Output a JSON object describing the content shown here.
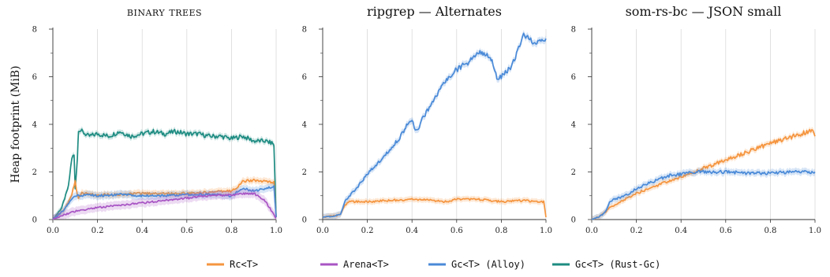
{
  "ylabel": "Heap footprint (MiB)",
  "legend": [
    {
      "label": "Rc<T>",
      "color": "#f5953f"
    },
    {
      "label": "Arena<T>",
      "color": "#a855c4"
    },
    {
      "label": "Gc<T> (Alloy)",
      "color": "#4a8ad8"
    },
    {
      "label": "Gc<T> (Rust-Gc)",
      "color": "#1e8c82"
    }
  ],
  "chart_data": [
    {
      "type": "line",
      "title": "binary trees",
      "xlim": [
        0,
        1
      ],
      "ylim": [
        0,
        8
      ],
      "xticks": [
        "0.0",
        "0.2",
        "0.4",
        "0.6",
        "0.8",
        "1.0"
      ],
      "yticks": [
        "0",
        "2",
        "4",
        "6",
        "8"
      ],
      "grid": true,
      "series": [
        {
          "name": "Gc<T> (Rust-Gc)",
          "color": "#1e8c82",
          "x": [
            0,
            0.04,
            0.07,
            0.085,
            0.095,
            0.1,
            0.11,
            0.115,
            0.13,
            0.16,
            0.2,
            0.25,
            0.3,
            0.35,
            0.4,
            0.45,
            0.5,
            0.55,
            0.6,
            0.65,
            0.7,
            0.75,
            0.8,
            0.85,
            0.9,
            0.95,
            0.985,
            0.99,
            1.0
          ],
          "y": [
            0,
            0.5,
            1.4,
            2.6,
            2.7,
            1.3,
            2.6,
            3.8,
            3.7,
            3.5,
            3.6,
            3.5,
            3.7,
            3.5,
            3.6,
            3.7,
            3.6,
            3.7,
            3.6,
            3.6,
            3.5,
            3.5,
            3.4,
            3.5,
            3.3,
            3.3,
            3.2,
            3.1,
            0.1
          ]
        },
        {
          "name": "Rc<T>",
          "color": "#f5953f",
          "x": [
            0,
            0.05,
            0.08,
            0.1,
            0.11,
            0.115,
            0.13,
            0.2,
            0.3,
            0.4,
            0.5,
            0.6,
            0.7,
            0.8,
            0.83,
            0.85,
            0.9,
            0.95,
            0.99,
            1.0
          ],
          "y": [
            0,
            0.4,
            0.9,
            1.6,
            1.0,
            0.9,
            1.1,
            1.05,
            1.05,
            1.1,
            1.1,
            1.1,
            1.15,
            1.2,
            1.4,
            1.6,
            1.65,
            1.6,
            1.55,
            0.1
          ]
        },
        {
          "name": "Gc<T> (Alloy)",
          "color": "#4a8ad8",
          "x": [
            0,
            0.05,
            0.08,
            0.1,
            0.12,
            0.15,
            0.2,
            0.3,
            0.4,
            0.5,
            0.6,
            0.7,
            0.8,
            0.85,
            0.9,
            0.95,
            0.99,
            1.0
          ],
          "y": [
            0,
            0.4,
            0.8,
            1.0,
            1.0,
            1.05,
            1.0,
            1.05,
            1.0,
            1.0,
            1.05,
            1.05,
            1.0,
            1.3,
            1.2,
            1.3,
            1.4,
            0.1
          ]
        },
        {
          "name": "Arena<T>",
          "color": "#a855c4",
          "x": [
            0,
            0.05,
            0.1,
            0.2,
            0.3,
            0.4,
            0.5,
            0.6,
            0.7,
            0.8,
            0.9,
            0.95,
            1.0
          ],
          "y": [
            0,
            0.2,
            0.35,
            0.5,
            0.6,
            0.7,
            0.8,
            0.9,
            1.0,
            1.05,
            1.1,
            0.8,
            0.05
          ]
        }
      ]
    },
    {
      "type": "line",
      "title": "ripgrep — Alternates",
      "xlim": [
        0,
        1
      ],
      "ylim": [
        0,
        8
      ],
      "xticks": [
        "0.0",
        "0.2",
        "0.4",
        "0.6",
        "0.8",
        "1.0"
      ],
      "yticks": [
        "0",
        "2",
        "4",
        "6",
        "8"
      ],
      "grid": true,
      "series": [
        {
          "name": "Rc<T>",
          "color": "#f5953f",
          "x": [
            0,
            0.05,
            0.08,
            0.1,
            0.12,
            0.2,
            0.3,
            0.4,
            0.5,
            0.55,
            0.6,
            0.7,
            0.8,
            0.9,
            0.95,
            0.99,
            1.0
          ],
          "y": [
            0.1,
            0.15,
            0.2,
            0.6,
            0.75,
            0.75,
            0.8,
            0.85,
            0.8,
            0.75,
            0.85,
            0.85,
            0.75,
            0.8,
            0.75,
            0.75,
            0.1
          ]
        },
        {
          "name": "Gc<T> (Alloy)",
          "color": "#4a8ad8",
          "x": [
            0,
            0.05,
            0.08,
            0.1,
            0.15,
            0.2,
            0.25,
            0.3,
            0.35,
            0.38,
            0.4,
            0.42,
            0.45,
            0.5,
            0.55,
            0.6,
            0.65,
            0.7,
            0.75,
            0.78,
            0.8,
            0.85,
            0.9,
            0.95,
            1.0
          ],
          "y": [
            0.1,
            0.15,
            0.2,
            0.8,
            1.3,
            1.9,
            2.4,
            2.9,
            3.5,
            4.0,
            4.1,
            3.7,
            4.3,
            5.1,
            5.8,
            6.3,
            6.6,
            7.0,
            6.9,
            6.0,
            6.0,
            6.5,
            7.8,
            7.4,
            7.6
          ]
        }
      ]
    },
    {
      "type": "line",
      "title": "som-rs-bc — JSON small",
      "xlim": [
        0,
        1
      ],
      "ylim": [
        0,
        8
      ],
      "xticks": [
        "0.0",
        "0.2",
        "0.4",
        "0.6",
        "0.8",
        "1.0"
      ],
      "yticks": [
        "0",
        "2",
        "4",
        "6",
        "8"
      ],
      "grid": true,
      "series": [
        {
          "name": "Rc<T>",
          "color": "#f5953f",
          "x": [
            0,
            0.03,
            0.06,
            0.08,
            0.2,
            0.4,
            0.6,
            0.8,
            0.99,
            1.0
          ],
          "y": [
            0,
            0.1,
            0.3,
            0.5,
            1.1,
            1.8,
            2.5,
            3.2,
            3.75,
            3.5
          ]
        },
        {
          "name": "Gc<T> (Alloy)",
          "color": "#4a8ad8",
          "x": [
            0,
            0.03,
            0.06,
            0.08,
            0.1,
            0.15,
            0.2,
            0.25,
            0.3,
            0.35,
            0.4,
            0.45,
            0.5,
            0.6,
            0.7,
            0.8,
            0.9,
            1.0
          ],
          "y": [
            0,
            0.1,
            0.3,
            0.7,
            0.85,
            1.0,
            1.3,
            1.5,
            1.7,
            1.85,
            1.9,
            2.0,
            2.0,
            2.0,
            1.95,
            1.95,
            2.0,
            2.0
          ]
        }
      ]
    }
  ]
}
